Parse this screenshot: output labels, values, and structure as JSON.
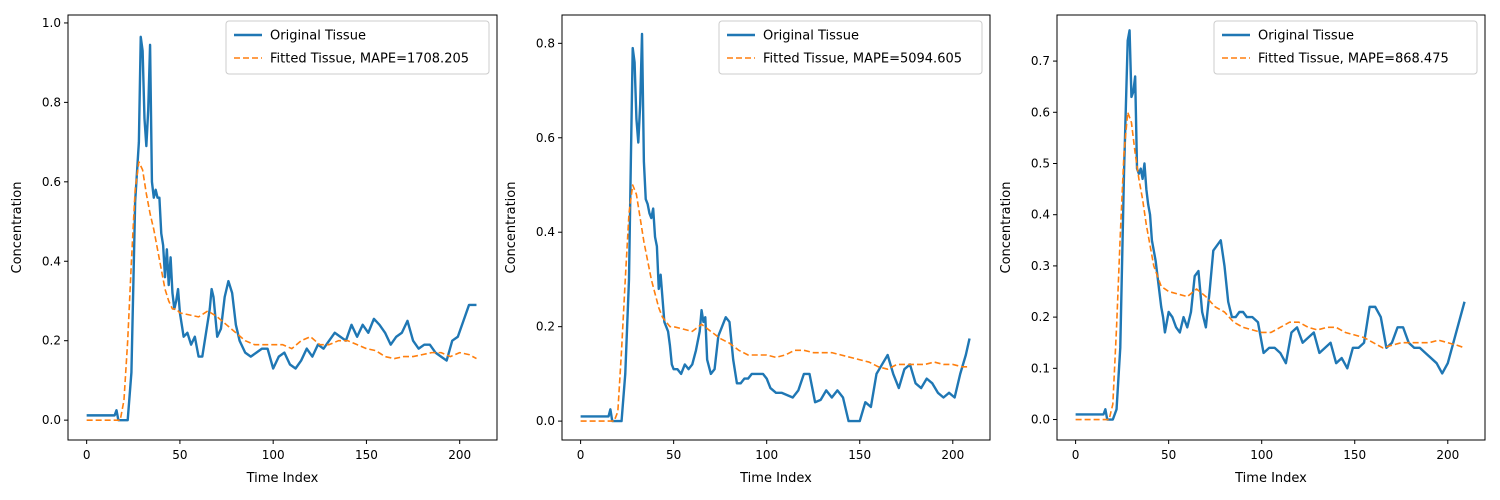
{
  "colors": {
    "original": "#1f77b4",
    "fitted": "#ff7f0e"
  },
  "chart_data": [
    {
      "type": "line",
      "xlabel": "Time Index",
      "ylabel": "Concentration",
      "xlim": [
        -10,
        220
      ],
      "ylim": [
        -0.05,
        1.02
      ],
      "xticks": [
        0,
        50,
        100,
        150,
        200
      ],
      "yticks": [
        0.0,
        0.2,
        0.4,
        0.6,
        0.8,
        1.0
      ],
      "ytick_labels": [
        "0.0",
        "0.2",
        "0.4",
        "0.6",
        "0.8",
        "1.0"
      ],
      "legend_position": "top-right",
      "series": [
        {
          "name": "Original Tissue",
          "style": "solid",
          "x": [
            0,
            5,
            10,
            15,
            16,
            17,
            18,
            20,
            22,
            24,
            26,
            28,
            29,
            30,
            31,
            32,
            33,
            34,
            35,
            36,
            37,
            38,
            39,
            40,
            41,
            42,
            43,
            44,
            45,
            46,
            47,
            48,
            49,
            50,
            52,
            54,
            56,
            58,
            60,
            62,
            64,
            66,
            67,
            68,
            70,
            72,
            74,
            76,
            78,
            80,
            82,
            85,
            88,
            91,
            94,
            97,
            100,
            103,
            106,
            109,
            112,
            115,
            118,
            121,
            124,
            127,
            130,
            133,
            136,
            139,
            142,
            145,
            148,
            151,
            154,
            157,
            160,
            163,
            166,
            169,
            172,
            175,
            178,
            181,
            184,
            187,
            190,
            193,
            196,
            199,
            202,
            205,
            208,
            209
          ],
          "y": [
            0.012,
            0.012,
            0.012,
            0.012,
            0.025,
            0.0,
            0.0,
            0.0,
            0.0,
            0.12,
            0.55,
            0.7,
            0.965,
            0.93,
            0.76,
            0.69,
            0.78,
            0.945,
            0.6,
            0.56,
            0.58,
            0.56,
            0.56,
            0.47,
            0.44,
            0.36,
            0.43,
            0.34,
            0.41,
            0.32,
            0.28,
            0.3,
            0.33,
            0.27,
            0.21,
            0.22,
            0.19,
            0.21,
            0.16,
            0.16,
            0.22,
            0.28,
            0.33,
            0.31,
            0.21,
            0.23,
            0.31,
            0.35,
            0.32,
            0.24,
            0.2,
            0.17,
            0.16,
            0.17,
            0.18,
            0.18,
            0.13,
            0.16,
            0.17,
            0.14,
            0.13,
            0.15,
            0.18,
            0.16,
            0.19,
            0.18,
            0.2,
            0.22,
            0.21,
            0.2,
            0.24,
            0.21,
            0.24,
            0.22,
            0.255,
            0.24,
            0.22,
            0.19,
            0.21,
            0.22,
            0.25,
            0.2,
            0.18,
            0.19,
            0.19,
            0.17,
            0.16,
            0.15,
            0.2,
            0.21,
            0.25,
            0.29,
            0.29,
            0.29
          ]
        },
        {
          "name": "Fitted Tissue, MAPE=1708.205",
          "style": "dashed",
          "x": [
            0,
            5,
            10,
            15,
            18,
            20,
            22,
            24,
            26,
            28,
            30,
            32,
            34,
            36,
            38,
            40,
            42,
            44,
            46,
            48,
            50,
            55,
            60,
            65,
            70,
            75,
            80,
            85,
            90,
            95,
            100,
            105,
            110,
            115,
            120,
            125,
            130,
            135,
            140,
            145,
            150,
            155,
            160,
            165,
            170,
            175,
            180,
            185,
            190,
            195,
            200,
            205,
            209
          ],
          "y": [
            0.0,
            0.0,
            0.0,
            0.0,
            0.0,
            0.05,
            0.2,
            0.4,
            0.58,
            0.65,
            0.63,
            0.57,
            0.52,
            0.48,
            0.43,
            0.38,
            0.33,
            0.3,
            0.28,
            0.28,
            0.27,
            0.265,
            0.26,
            0.275,
            0.26,
            0.24,
            0.22,
            0.2,
            0.19,
            0.19,
            0.19,
            0.19,
            0.18,
            0.2,
            0.21,
            0.19,
            0.19,
            0.2,
            0.2,
            0.19,
            0.18,
            0.175,
            0.16,
            0.155,
            0.16,
            0.16,
            0.165,
            0.17,
            0.17,
            0.16,
            0.17,
            0.165,
            0.155
          ]
        }
      ]
    },
    {
      "type": "line",
      "xlabel": "Time Index",
      "ylabel": "Concentration",
      "xlim": [
        -10,
        220
      ],
      "ylim": [
        -0.04,
        0.86
      ],
      "xticks": [
        0,
        50,
        100,
        150,
        200
      ],
      "yticks": [
        0.0,
        0.2,
        0.4,
        0.6,
        0.8
      ],
      "ytick_labels": [
        "0.0",
        "0.2",
        "0.4",
        "0.6",
        "0.8"
      ],
      "legend_position": "top-right",
      "series": [
        {
          "name": "Original Tissue",
          "style": "solid",
          "x": [
            0,
            5,
            10,
            15,
            16,
            17,
            18,
            20,
            22,
            24,
            26,
            27,
            28,
            29,
            30,
            31,
            32,
            33,
            34,
            35,
            36,
            37,
            38,
            39,
            40,
            41,
            42,
            43,
            44,
            45,
            46,
            47,
            48,
            49,
            50,
            52,
            54,
            56,
            58,
            60,
            62,
            64,
            65,
            66,
            67,
            68,
            70,
            72,
            74,
            76,
            78,
            80,
            82,
            84,
            86,
            88,
            90,
            92,
            94,
            96,
            98,
            100,
            102,
            105,
            108,
            111,
            114,
            117,
            120,
            123,
            126,
            129,
            132,
            135,
            138,
            141,
            144,
            147,
            150,
            153,
            156,
            159,
            162,
            165,
            168,
            171,
            174,
            177,
            180,
            183,
            186,
            189,
            192,
            195,
            198,
            201,
            204,
            207,
            209
          ],
          "y": [
            0.01,
            0.01,
            0.01,
            0.01,
            0.025,
            0.0,
            0.0,
            0.0,
            0.0,
            0.1,
            0.3,
            0.55,
            0.79,
            0.76,
            0.64,
            0.59,
            0.67,
            0.82,
            0.55,
            0.47,
            0.46,
            0.44,
            0.43,
            0.45,
            0.39,
            0.37,
            0.28,
            0.31,
            0.26,
            0.21,
            0.2,
            0.19,
            0.16,
            0.12,
            0.11,
            0.11,
            0.1,
            0.12,
            0.11,
            0.12,
            0.15,
            0.19,
            0.235,
            0.21,
            0.22,
            0.13,
            0.1,
            0.11,
            0.18,
            0.2,
            0.22,
            0.21,
            0.13,
            0.08,
            0.08,
            0.09,
            0.09,
            0.1,
            0.1,
            0.1,
            0.1,
            0.09,
            0.07,
            0.06,
            0.06,
            0.055,
            0.05,
            0.065,
            0.1,
            0.1,
            0.04,
            0.045,
            0.065,
            0.05,
            0.065,
            0.05,
            0.0,
            0.0,
            0.0,
            0.04,
            0.03,
            0.1,
            0.12,
            0.14,
            0.1,
            0.07,
            0.11,
            0.12,
            0.08,
            0.07,
            0.09,
            0.08,
            0.06,
            0.05,
            0.06,
            0.05,
            0.1,
            0.14,
            0.175
          ]
        },
        {
          "name": "Fitted Tissue, MAPE=5094.605",
          "style": "dashed",
          "x": [
            0,
            5,
            10,
            15,
            18,
            20,
            22,
            24,
            26,
            28,
            30,
            32,
            34,
            36,
            38,
            40,
            42,
            44,
            46,
            48,
            50,
            55,
            60,
            65,
            70,
            75,
            80,
            85,
            90,
            95,
            100,
            105,
            110,
            115,
            120,
            125,
            130,
            135,
            140,
            145,
            150,
            155,
            160,
            165,
            170,
            175,
            180,
            185,
            190,
            195,
            200,
            205,
            209
          ],
          "y": [
            0.0,
            0.0,
            0.0,
            0.0,
            0.0,
            0.02,
            0.15,
            0.3,
            0.44,
            0.5,
            0.48,
            0.43,
            0.38,
            0.34,
            0.3,
            0.27,
            0.24,
            0.22,
            0.21,
            0.2,
            0.2,
            0.195,
            0.19,
            0.205,
            0.19,
            0.175,
            0.165,
            0.15,
            0.14,
            0.14,
            0.14,
            0.135,
            0.14,
            0.15,
            0.15,
            0.145,
            0.145,
            0.145,
            0.14,
            0.135,
            0.13,
            0.125,
            0.115,
            0.11,
            0.12,
            0.12,
            0.12,
            0.12,
            0.125,
            0.12,
            0.12,
            0.115,
            0.115
          ]
        }
      ]
    },
    {
      "type": "line",
      "xlabel": "Time Index",
      "ylabel": "Concentration",
      "xlim": [
        -10,
        220
      ],
      "ylim": [
        -0.04,
        0.79
      ],
      "xticks": [
        0,
        50,
        100,
        150,
        200
      ],
      "yticks": [
        0.0,
        0.1,
        0.2,
        0.3,
        0.4,
        0.5,
        0.6,
        0.7
      ],
      "ytick_labels": [
        "0.0",
        "0.1",
        "0.2",
        "0.3",
        "0.4",
        "0.5",
        "0.6",
        "0.7"
      ],
      "legend_position": "top-right",
      "series": [
        {
          "name": "Original Tissue",
          "style": "solid",
          "x": [
            0,
            5,
            10,
            15,
            16,
            17,
            18,
            20,
            22,
            24,
            26,
            28,
            29,
            30,
            31,
            32,
            33,
            34,
            35,
            36,
            37,
            38,
            39,
            40,
            41,
            42,
            43,
            44,
            45,
            46,
            47,
            48,
            50,
            52,
            54,
            56,
            58,
            60,
            62,
            64,
            66,
            68,
            70,
            72,
            74,
            76,
            78,
            80,
            82,
            84,
            86,
            88,
            90,
            92,
            95,
            98,
            101,
            104,
            107,
            110,
            113,
            116,
            119,
            122,
            125,
            128,
            131,
            134,
            137,
            140,
            143,
            146,
            149,
            152,
            155,
            158,
            161,
            164,
            167,
            170,
            173,
            176,
            179,
            182,
            185,
            188,
            191,
            194,
            197,
            200,
            203,
            206,
            209
          ],
          "y": [
            0.01,
            0.01,
            0.01,
            0.01,
            0.02,
            0.0,
            0.0,
            0.0,
            0.02,
            0.14,
            0.48,
            0.74,
            0.76,
            0.63,
            0.64,
            0.67,
            0.49,
            0.48,
            0.49,
            0.47,
            0.5,
            0.45,
            0.42,
            0.4,
            0.35,
            0.33,
            0.31,
            0.28,
            0.25,
            0.22,
            0.2,
            0.17,
            0.21,
            0.2,
            0.18,
            0.17,
            0.2,
            0.18,
            0.21,
            0.28,
            0.29,
            0.21,
            0.18,
            0.25,
            0.33,
            0.34,
            0.35,
            0.3,
            0.23,
            0.2,
            0.2,
            0.21,
            0.21,
            0.2,
            0.2,
            0.19,
            0.13,
            0.14,
            0.14,
            0.13,
            0.11,
            0.17,
            0.18,
            0.15,
            0.16,
            0.17,
            0.13,
            0.14,
            0.15,
            0.11,
            0.12,
            0.1,
            0.14,
            0.14,
            0.15,
            0.22,
            0.22,
            0.2,
            0.14,
            0.15,
            0.18,
            0.18,
            0.15,
            0.14,
            0.14,
            0.13,
            0.12,
            0.11,
            0.09,
            0.11,
            0.15,
            0.19,
            0.23
          ]
        },
        {
          "name": "Fitted Tissue, MAPE=868.475",
          "style": "dashed",
          "x": [
            0,
            5,
            10,
            15,
            18,
            20,
            22,
            24,
            26,
            28,
            30,
            32,
            34,
            36,
            38,
            40,
            42,
            44,
            46,
            48,
            50,
            55,
            60,
            65,
            70,
            75,
            80,
            85,
            90,
            95,
            100,
            105,
            110,
            115,
            120,
            125,
            130,
            135,
            140,
            145,
            150,
            155,
            160,
            165,
            170,
            175,
            180,
            185,
            190,
            195,
            200,
            205,
            209
          ],
          "y": [
            0.0,
            0.0,
            0.0,
            0.0,
            0.0,
            0.03,
            0.18,
            0.36,
            0.52,
            0.6,
            0.58,
            0.52,
            0.47,
            0.43,
            0.38,
            0.34,
            0.3,
            0.28,
            0.26,
            0.255,
            0.25,
            0.245,
            0.24,
            0.255,
            0.24,
            0.22,
            0.21,
            0.19,
            0.18,
            0.175,
            0.17,
            0.17,
            0.18,
            0.19,
            0.19,
            0.18,
            0.175,
            0.18,
            0.18,
            0.17,
            0.165,
            0.16,
            0.15,
            0.14,
            0.145,
            0.15,
            0.15,
            0.15,
            0.15,
            0.155,
            0.15,
            0.145,
            0.14
          ]
        }
      ]
    }
  ]
}
